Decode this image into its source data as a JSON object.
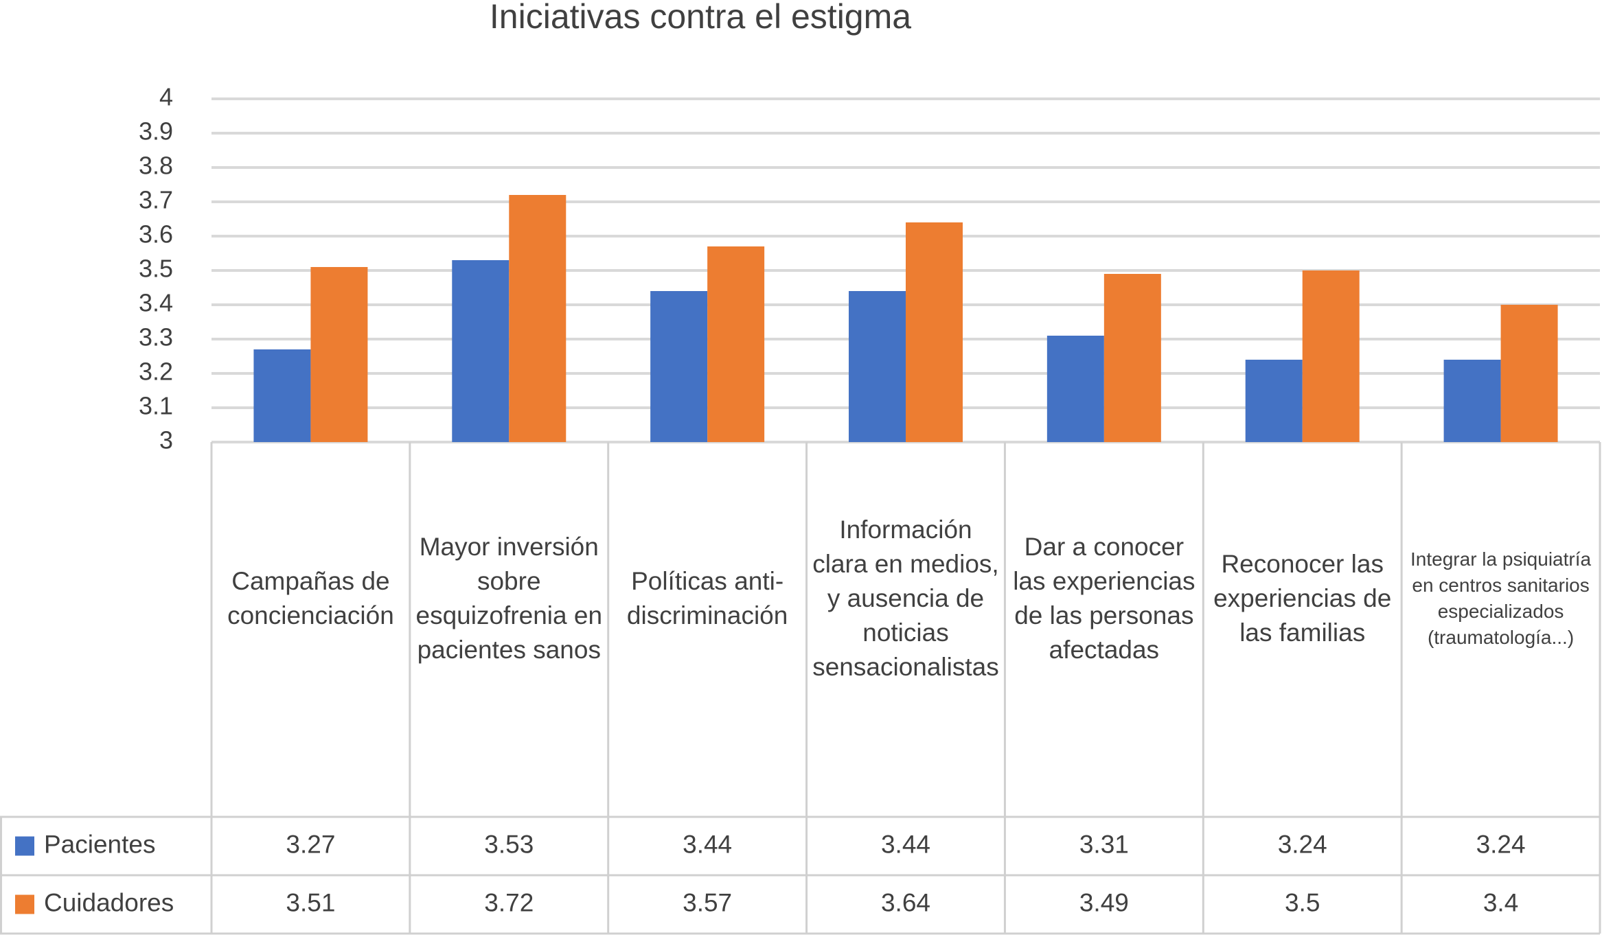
{
  "chart_data": {
    "type": "bar",
    "title": "Iniciativas contra el estigma",
    "categories": [
      "Campañas de concienciación",
      "Mayor inversión sobre esquizofrenia en pacientes sanos",
      "Políticas anti-discriminación",
      "Información clara en medios, y ausencia de noticias sensacionalistas",
      "Dar a conocer las experiencias de las personas afectadas",
      "Reconocer las experiencias de las familias",
      "Integrar la psiquiatría en centros sanitarios especializados (traumatología...)"
    ],
    "series": [
      {
        "name": "Pacientes",
        "color": "#4472c4",
        "values": [
          3.27,
          3.53,
          3.44,
          3.44,
          3.31,
          3.24,
          3.24
        ]
      },
      {
        "name": "Cuidadores",
        "color": "#ed7d31",
        "values": [
          3.51,
          3.72,
          3.57,
          3.64,
          3.49,
          3.5,
          3.4
        ]
      }
    ],
    "ylim": [
      3,
      4
    ],
    "yticks": [
      3,
      3.1,
      3.2,
      3.3,
      3.4,
      3.5,
      3.6,
      3.7,
      3.8,
      3.9,
      4
    ],
    "grid": true,
    "data_table": true
  }
}
